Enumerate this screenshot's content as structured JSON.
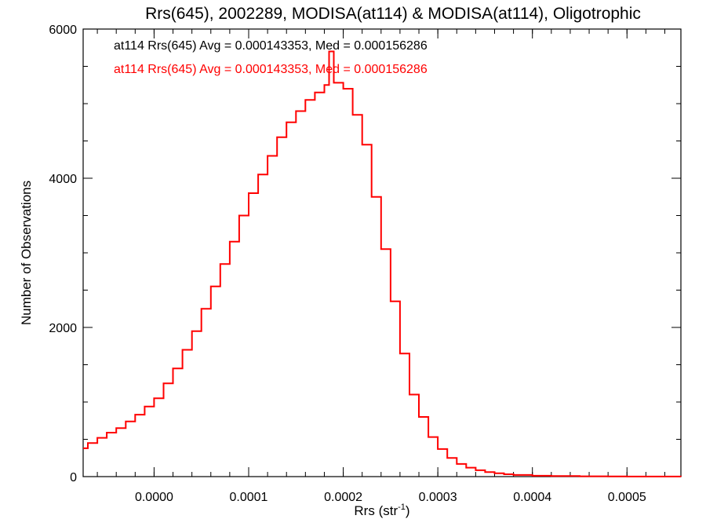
{
  "chart_data": {
    "type": "line",
    "title": "Rrs(645), 2002289, MODISA(at114) & MODISA(at114), Oligotrophic",
    "xlabel_main": "Rrs (str",
    "xlabel_sup": "-1",
    "xlabel_end": ")",
    "ylabel": "Number of Observations",
    "xlim": [
      -7.5e-05,
      0.000557
    ],
    "ylim": [
      0,
      6000
    ],
    "grid": false,
    "step": true,
    "x_ticks": [
      {
        "value": 0.0,
        "label": "0.0000"
      },
      {
        "value": 0.0001,
        "label": "0.0001"
      },
      {
        "value": 0.0002,
        "label": "0.0002"
      },
      {
        "value": 0.0003,
        "label": "0.0003"
      },
      {
        "value": 0.0004,
        "label": "0.0004"
      },
      {
        "value": 0.0005,
        "label": "0.0005"
      }
    ],
    "x_minor_step": 2e-05,
    "y_ticks": [
      {
        "value": 0,
        "label": "0"
      },
      {
        "value": 2000,
        "label": "2000"
      },
      {
        "value": 4000,
        "label": "4000"
      },
      {
        "value": 6000,
        "label": "6000"
      }
    ],
    "y_minor_step": 500,
    "annotations": [
      {
        "text": "at114 Rrs(645) Avg = 0.000143353, Med = 0.000156286",
        "color": "#000000"
      },
      {
        "text": "at114 Rrs(645) Avg = 0.000143353, Med = 0.000156286",
        "color": "#ff0000"
      }
    ],
    "series": [
      {
        "color": "#ff0000",
        "x": [
          -7.5e-05,
          -7e-05,
          -6e-05,
          -5e-05,
          -4e-05,
          -3e-05,
          -2e-05,
          -1e-05,
          0.0,
          1e-05,
          2e-05,
          3e-05,
          4e-05,
          5e-05,
          6e-05,
          7e-05,
          8e-05,
          9e-05,
          0.0001,
          0.00011,
          0.00012,
          0.00013,
          0.00014,
          0.00015,
          0.00016,
          0.00017,
          0.00018,
          0.000185,
          0.00019,
          0.0002,
          0.00021,
          0.00022,
          0.00023,
          0.00024,
          0.00025,
          0.00026,
          0.00027,
          0.00028,
          0.00029,
          0.0003,
          0.00031,
          0.00032,
          0.00033,
          0.00034,
          0.00035,
          0.00036,
          0.00037,
          0.00038,
          0.0004,
          0.00042,
          0.00045,
          0.00048,
          0.0005,
          0.00053,
          0.000557
        ],
        "y": [
          380,
          450,
          520,
          590,
          650,
          740,
          830,
          940,
          1050,
          1250,
          1450,
          1700,
          1950,
          2250,
          2550,
          2850,
          3150,
          3500,
          3800,
          4050,
          4300,
          4550,
          4750,
          4900,
          5050,
          5150,
          5250,
          5700,
          5280,
          5200,
          4850,
          4450,
          3750,
          3050,
          2350,
          1650,
          1100,
          800,
          530,
          370,
          250,
          170,
          120,
          85,
          60,
          45,
          32,
          22,
          12,
          8,
          4,
          2,
          1,
          1,
          0
        ]
      }
    ]
  }
}
